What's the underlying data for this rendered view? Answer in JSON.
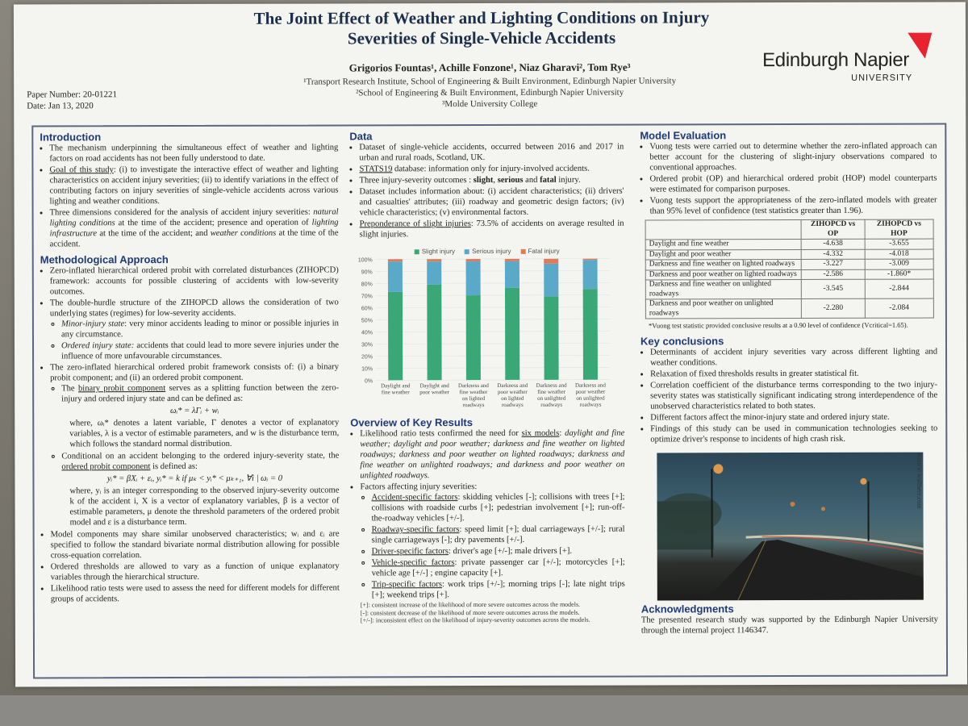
{
  "header": {
    "title_line1": "The Joint Effect of Weather and Lighting Conditions on Injury",
    "title_line2": "Severities of Single-Vehicle Accidents",
    "authors": "Grigorios Fountas¹,  Achille Fonzone¹,  Niaz Gharavi²,  Tom Rye³",
    "affil1": "¹Transport Research Institute, School of Engineering & Built Environment, Edinburgh Napier University",
    "affil2": "²School of Engineering & Built Environment, Edinburgh Napier University",
    "affil3": "³Molde University College",
    "paper_number": "Paper Number: 20-01221",
    "date": "Date: Jan 13, 2020",
    "logo_name": "Edinburgh Napier",
    "logo_sub": "UNIVERSITY"
  },
  "intro": {
    "heading": "Introduction",
    "b1": "The mechanism underpinning the simultaneous effect of weather and lighting factors on road accidents has not been fully understood to date.",
    "b2_label": "Goal of this study",
    "b2": ": (i) to investigate the interactive effect of weather and lighting characteristics on accident injury severities; (ii) to identify variations in the effect of contributing factors on injury severities of single-vehicle accidents across various lighting and weather conditions.",
    "b3a": "Three dimensions considered for the analysis of accident injury severities: ",
    "b3b": "natural lighting conditions",
    "b3c": " at the time of the accident; presence and operation of ",
    "b3d": "lighting infrastructure",
    "b3e": " at the time of the accident; and ",
    "b3f": "weather conditions",
    "b3g": " at the time of the accident."
  },
  "method": {
    "heading": "Methodological Approach",
    "b1": "Zero-inflated hierarchical ordered probit with correlated disturbances (ZIHOPCD) framework: accounts for possible clustering of accidents with low-severity outcomes.",
    "b2": "The double-hurdle structure of the ZIHOPCD allows the consideration of two underlying states (regimes) for low-severity accidents.",
    "s1a": "Minor-injury state",
    "s1b": ": very minor accidents leading to minor or possible injuries in any circumstance.",
    "s2a": "Ordered injury state:",
    "s2b": " accidents that could lead to more severe injuries under the influence of more unfavourable circumstances.",
    "b3": "The zero-inflated hierarchical ordered probit framework consists of: (i) a binary probit component; and (ii) an ordered probit component.",
    "s3a": "The ",
    "s3b": "binary probit component",
    "s3c": " serves as a splitting function between the zero-injury and ordered injury state and can be defined as:",
    "eq1": "ωᵢ* = λΓᵢ + wᵢ",
    "eq1_desc": "where, ωᵢ* denotes a latent variable, Γ denotes a vector of explanatory variables, λ is a vector of estimable parameters, and w is the disturbance term, which follows the standard normal distribution.",
    "s4a": "Conditional on an accident belonging to the ordered injury-severity state, the ",
    "s4b": "ordered probit component",
    "s4c": " is defined as:",
    "eq2": "yᵢ* = βXᵢ + εᵢ,  yᵢ* = k if μₖ < yᵢ* < μₖ₊₁,  ∀i | ωᵢ = 0",
    "eq2_desc": "where, yᵢ is an integer corresponding to the observed injury-severity outcome k of the accident i, X is a vector of explanatory variables, β is a vector of estimable parameters, μ denote the threshold parameters of the ordered probit model and ε is a disturbance term.",
    "b4": "Model components may share similar unobserved characteristics; wᵢ and εᵢ are specified to follow the standard bivariate normal distribution allowing for possible cross-equation correlation.",
    "b5": "Ordered thresholds are allowed to vary as a function of unique explanatory variables through the hierarchical structure.",
    "b6": "Likelihood ratio tests were used to assess the need for different models for different groups of accidents."
  },
  "data_section": {
    "heading": "Data",
    "b1": "Dataset of single-vehicle accidents, occurred between 2016 and 2017 in urban and rural roads, Scotland, UK.",
    "b2_label": "STATS19",
    "b2": " database: information only for injury-involved accidents.",
    "b3a": "Three injury-severity outcomes : ",
    "b3b": "slight",
    "b3c": ", ",
    "b3d": "serious",
    "b3e": " and ",
    "b3f": "fatal",
    "b3g": " injury.",
    "b4": "Dataset includes information about: (i) accident characteristics; (ii) drivers' and casualties' attributes; (iii) roadway and geometric design factors; (iv) vehicle characteristics; (v) environmental factors.",
    "b5_label": "Preponderance of slight injuries",
    "b5": ": 73.5% of accidents on average resulted in slight injuries."
  },
  "chart_data": {
    "type": "bar",
    "stacked": true,
    "categories": [
      "Daylight and fine weather",
      "Daylight and poor weather",
      "Darkness and fine weather on lighted roadways",
      "Darkness and poor weather on lighted roadways",
      "Darkness and fine weather on unlighted roadways",
      "Darkness and poor weather on unlighted roadways"
    ],
    "series": [
      {
        "name": "Slight injury",
        "color": "#3aa876",
        "values": [
          73,
          79,
          70,
          76,
          69,
          75
        ]
      },
      {
        "name": "Serious injury",
        "color": "#5aa9c9",
        "values": [
          25,
          19,
          28,
          22,
          27,
          24
        ]
      },
      {
        "name": "Fatal injury",
        "color": "#e07b5a",
        "values": [
          2,
          2,
          2,
          2,
          4,
          1
        ]
      }
    ],
    "ylim": [
      0,
      100
    ],
    "yticks": [
      "0%",
      "10%",
      "20%",
      "30%",
      "40%",
      "50%",
      "60%",
      "70%",
      "80%",
      "90%",
      "100%"
    ],
    "legend_position": "top"
  },
  "overview": {
    "heading": "Overview of Key Results",
    "b1a": "Likelihood ratio tests confirmed the need for ",
    "b1b": "six models",
    "b1c": ": ",
    "b1d": "daylight and fine weather; daylight and poor weather; darkness and fine weather on lighted roadways; darkness and poor weather on lighted roadways; darkness and fine weather on unlighted roadways; and darkness and poor weather on unlighted roadways.",
    "b2": "Factors affecting injury severities:",
    "f1a": "Accident-specific factors",
    "f1b": ": skidding vehicles [-]; collisions with trees [+]; collisions with roadside curbs [+]; pedestrian involvement [+]; run-off-the-roadway vehicles [+/-].",
    "f2a": "Roadway-specific factors",
    "f2b": ": speed limit [+]; dual carriageways [+/-]; rural single carriageways [-]; dry pavements [+/-].",
    "f3a": "Driver-specific factors",
    "f3b": ": driver's age [+/-]; male drivers [+].",
    "f4a": "Vehicle-specific factors",
    "f4b": ": private passenger car [+/-]; motorcycles [+]; vehicle age [+/-] ; engine capacity [+].",
    "f5a": "Trip-specific factors",
    "f5b": ": work trips [+/-]; morning trips [-]; late night trips [+]; weekend trips [+].",
    "k1": "[+]: consistent increase of the likelihood of more severe outcomes across the models.",
    "k2": "[-]: consistent decrease of the likelihood of more severe outcomes across the models.",
    "k3": "[+/-]: inconsistent effect on the likelihood of injury-severity outcomes across the models."
  },
  "evaluation": {
    "heading": "Model Evaluation",
    "b1": "Vuong tests were carried out to determine whether the zero-inflated approach can better account for the clustering of slight-injury observations compared to conventional approaches.",
    "b2": "Ordered probit (OP) and hierarchical ordered probit (HOP) model counterparts were estimated for comparison purposes.",
    "b3": "Vuong tests support the appropriateness of the zero-inflated models with greater than 95% level of confidence (test statistics greater than 1.96).",
    "table_headers": [
      "",
      "ZIHOPCD vs OP",
      "ZIHOPCD vs HOP"
    ],
    "table_rows": [
      [
        "Daylight and fine weather",
        "-4.638",
        "-3.655"
      ],
      [
        "Daylight and poor weather",
        "-4.332",
        "-4.018"
      ],
      [
        "Darkness and fine weather on lighted roadways",
        "-3.227",
        "-3.009"
      ],
      [
        "Darkness and poor weather on lighted roadways",
        "-2.586",
        "-1.860*"
      ],
      [
        "Darkness and fine weather on unlighted roadways",
        "-3.545",
        "-2.844"
      ],
      [
        "Darkness and poor weather on unlighted roadways",
        "-2.280",
        "-2.084"
      ]
    ],
    "table_note": "*Vuong test statistic provided conclusive results at a 0.90 level of confidence (Vcritical=1.65)."
  },
  "conclusions": {
    "heading": "Key conclusions",
    "items": [
      "Determinants of accident injury severities vary across different lighting and weather conditions.",
      "Relaxation of fixed thresholds results in greater statistical fit.",
      "Correlation coefficient of the disturbance terms corresponding to the two injury-severity states was statistically significant indicating strong interdependence of the unobserved characteristics related to both states.",
      "Different factors affect the minor-injury state and ordered injury state.",
      "Findings of this study can be used in communication technologies seeking to optimize driver's response to incidents of high crash risk."
    ],
    "photo_source": "Source: wallhere.com"
  },
  "ack": {
    "heading": "Acknowledgments",
    "text": "The presented research study was supported by the Edinburgh Napier University through the internal project 1146347."
  }
}
